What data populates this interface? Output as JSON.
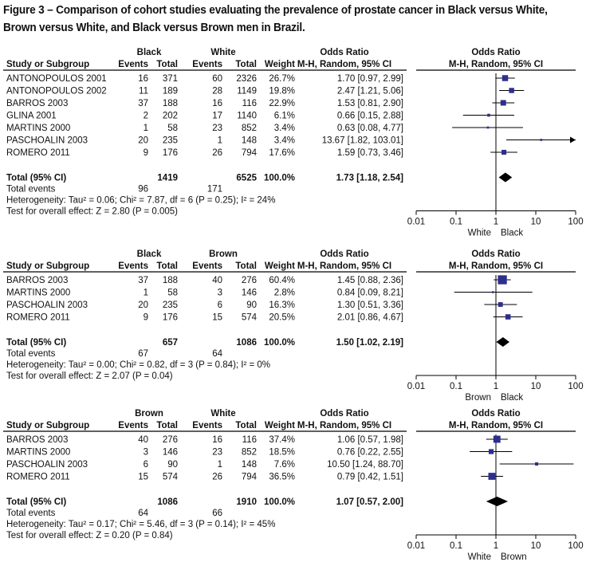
{
  "caption": "Figure 3 – Comparison of cohort studies evaluating the prevalence of prostate cancer in Black versus White, Brown versus White, and Black versus Brown men in Brazil.",
  "headers": {
    "study": "Study or Subgroup",
    "events": "Events",
    "total": "Total",
    "weight": "Weight",
    "effect_title": "Odds Ratio",
    "effect_method": "M-H, Random, 95% CI"
  },
  "chart_data": [
    {
      "type": "forest",
      "group1": "Black",
      "group2": "White",
      "studies": [
        {
          "name": "ANTONOPOULOS 2001",
          "e1": "16",
          "n1": "371",
          "e2": "60",
          "n2": "2326",
          "weight": "26.7%",
          "ci_text": "1.70 [0.97, 2.99]",
          "or": 1.7,
          "lo": 0.97,
          "hi": 2.99
        },
        {
          "name": "ANTONOPOULOS 2002",
          "e1": "11",
          "n1": "189",
          "e2": "28",
          "n2": "1149",
          "weight": "19.8%",
          "ci_text": "2.47 [1.21, 5.06]",
          "or": 2.47,
          "lo": 1.21,
          "hi": 5.06
        },
        {
          "name": "BARROS 2003",
          "e1": "37",
          "n1": "188",
          "e2": "16",
          "n2": "116",
          "weight": "22.9%",
          "ci_text": "1.53 [0.81, 2.90]",
          "or": 1.53,
          "lo": 0.81,
          "hi": 2.9
        },
        {
          "name": "GLINA 2001",
          "e1": "2",
          "n1": "202",
          "e2": "17",
          "n2": "1140",
          "weight": "6.1%",
          "ci_text": "0.66 [0.15, 2.88]",
          "or": 0.66,
          "lo": 0.15,
          "hi": 2.88
        },
        {
          "name": "MARTINS 2000",
          "e1": "1",
          "n1": "58",
          "e2": "23",
          "n2": "852",
          "weight": "3.4%",
          "ci_text": "0.63 [0.08, 4.77]",
          "or": 0.63,
          "lo": 0.08,
          "hi": 4.77
        },
        {
          "name": "PASCHOALIN 2003",
          "e1": "20",
          "n1": "235",
          "e2": "1",
          "n2": "148",
          "weight": "3.4%",
          "ci_text": "13.67 [1.82, 103.01]",
          "or": 13.67,
          "lo": 1.82,
          "hi": 103.01
        },
        {
          "name": "ROMERO 2011",
          "e1": "9",
          "n1": "176",
          "e2": "26",
          "n2": "794",
          "weight": "17.6%",
          "ci_text": "1.59 [0.73, 3.46]",
          "or": 1.59,
          "lo": 0.73,
          "hi": 3.46
        }
      ],
      "total": {
        "label": "Total (95% CI)",
        "n1": "1419",
        "n2": "6525",
        "weight": "100.0%",
        "ci_text": "1.73 [1.18, 2.54]",
        "or": 1.73,
        "lo": 1.18,
        "hi": 2.54
      },
      "events": {
        "label": "Total events",
        "e1": "96",
        "e2": "171"
      },
      "heterogeneity": "Heterogeneity: Tau² = 0.06; Chi² = 7.87, df = 6 (P = 0.25); I² = 24%",
      "overall": "Test for overall effect: Z = 2.80 (P = 0.005)",
      "axis": {
        "ticks": [
          0.01,
          0.1,
          1,
          10,
          100
        ],
        "tick_labels": [
          "0.01",
          "0.1",
          "1",
          "10",
          "100"
        ],
        "xlim": [
          0.01,
          100
        ],
        "left_label": "White",
        "right_label": "Black"
      }
    },
    {
      "type": "forest",
      "group1": "Black",
      "group2": "Brown",
      "studies": [
        {
          "name": "BARROS 2003",
          "e1": "37",
          "n1": "188",
          "e2": "40",
          "n2": "276",
          "weight": "60.4%",
          "ci_text": "1.45 [0.88, 2.36]",
          "or": 1.45,
          "lo": 0.88,
          "hi": 2.36
        },
        {
          "name": "MARTINS 2000",
          "e1": "1",
          "n1": "58",
          "e2": "3",
          "n2": "146",
          "weight": "2.8%",
          "ci_text": "0.84 [0.09, 8.21]",
          "or": 0.84,
          "lo": 0.09,
          "hi": 8.21
        },
        {
          "name": "PASCHOALIN 2003",
          "e1": "20",
          "n1": "235",
          "e2": "6",
          "n2": "90",
          "weight": "16.3%",
          "ci_text": "1.30 [0.51, 3.36]",
          "or": 1.3,
          "lo": 0.51,
          "hi": 3.36
        },
        {
          "name": "ROMERO 2011",
          "e1": "9",
          "n1": "176",
          "e2": "15",
          "n2": "574",
          "weight": "20.5%",
          "ci_text": "2.01 [0.86, 4.67]",
          "or": 2.01,
          "lo": 0.86,
          "hi": 4.67
        }
      ],
      "total": {
        "label": "Total (95% CI)",
        "n1": "657",
        "n2": "1086",
        "weight": "100.0%",
        "ci_text": "1.50 [1.02, 2.19]",
        "or": 1.5,
        "lo": 1.02,
        "hi": 2.19
      },
      "events": {
        "label": "Total events",
        "e1": "67",
        "e2": "64"
      },
      "heterogeneity": "Heterogeneity: Tau² = 0.00; Chi² = 0.82, df = 3 (P = 0.84); I² = 0%",
      "overall": "Test for overall effect: Z = 2.07 (P = 0.04)",
      "axis": {
        "ticks": [
          0.01,
          0.1,
          1,
          10,
          100
        ],
        "tick_labels": [
          "0.01",
          "0.1",
          "1",
          "10",
          "100"
        ],
        "xlim": [
          0.01,
          100
        ],
        "left_label": "Brown",
        "right_label": "Black"
      }
    },
    {
      "type": "forest",
      "group1": "Brown",
      "group2": "White",
      "studies": [
        {
          "name": "BARROS 2003",
          "e1": "40",
          "n1": "276",
          "e2": "16",
          "n2": "116",
          "weight": "37.4%",
          "ci_text": "1.06 [0.57, 1.98]",
          "or": 1.06,
          "lo": 0.57,
          "hi": 1.98
        },
        {
          "name": "MARTINS 2000",
          "e1": "3",
          "n1": "146",
          "e2": "23",
          "n2": "852",
          "weight": "18.5%",
          "ci_text": "0.76 [0.22, 2.55]",
          "or": 0.76,
          "lo": 0.22,
          "hi": 2.55
        },
        {
          "name": "PASCHOALIN 2003",
          "e1": "6",
          "n1": "90",
          "e2": "1",
          "n2": "148",
          "weight": "7.6%",
          "ci_text": "10.50 [1.24, 88.70]",
          "or": 10.5,
          "lo": 1.24,
          "hi": 88.7
        },
        {
          "name": "ROMERO 2011",
          "e1": "15",
          "n1": "574",
          "e2": "26",
          "n2": "794",
          "weight": "36.5%",
          "ci_text": "0.79 [0.42, 1.51]",
          "or": 0.79,
          "lo": 0.42,
          "hi": 1.51
        }
      ],
      "total": {
        "label": "Total (95% CI)",
        "n1": "1086",
        "n2": "1910",
        "weight": "100.0%",
        "ci_text": "1.07 [0.57, 2.00]",
        "or": 1.07,
        "lo": 0.57,
        "hi": 2.0
      },
      "events": {
        "label": "Total events",
        "e1": "64",
        "e2": "66"
      },
      "heterogeneity": "Heterogeneity: Tau² = 0.17; Chi² = 5.46, df = 3 (P = 0.14); I² = 45%",
      "overall": "Test for overall effect: Z = 0.20 (P = 0.84)",
      "axis": {
        "ticks": [
          0.01,
          0.1,
          1,
          10,
          100
        ],
        "tick_labels": [
          "0.01",
          "0.1",
          "1",
          "10",
          "100"
        ],
        "xlim": [
          0.01,
          100
        ],
        "left_label": "White",
        "right_label": "Brown"
      }
    }
  ],
  "colors": {
    "marker": "#2e2e8c",
    "line": "#000000",
    "diamond": "#000000"
  }
}
